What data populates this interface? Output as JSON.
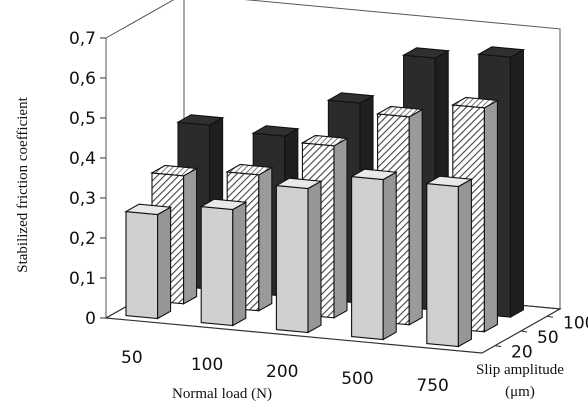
{
  "chart_data": {
    "type": "bar",
    "variant": "3d-grouped",
    "title": "",
    "ylabel": "Stabilized friction coefficient",
    "xlabel": "Normal load (N)",
    "zlabel_line1": "Slip amplitude",
    "zlabel_line2": "(μm)",
    "ylim": [
      0,
      0.7
    ],
    "yticks": [
      "0",
      "0,1",
      "0,2",
      "0,3",
      "0,4",
      "0,5",
      "0,6",
      "0,7"
    ],
    "categories": [
      "50",
      "100",
      "200",
      "500",
      "750"
    ],
    "series": [
      {
        "name": "20",
        "values": [
          0.26,
          0.29,
          0.36,
          0.4,
          0.4
        ],
        "color": "#d0d0d0",
        "pattern": "solid"
      },
      {
        "name": "50",
        "values": [
          0.32,
          0.34,
          0.43,
          0.52,
          0.56
        ],
        "color": "#ffffff",
        "pattern": "hatch"
      },
      {
        "name": "100",
        "values": [
          0.41,
          0.4,
          0.5,
          0.63,
          0.65
        ],
        "color": "#2b2b2b",
        "pattern": "solid"
      }
    ],
    "grid": false,
    "legend": "none"
  }
}
